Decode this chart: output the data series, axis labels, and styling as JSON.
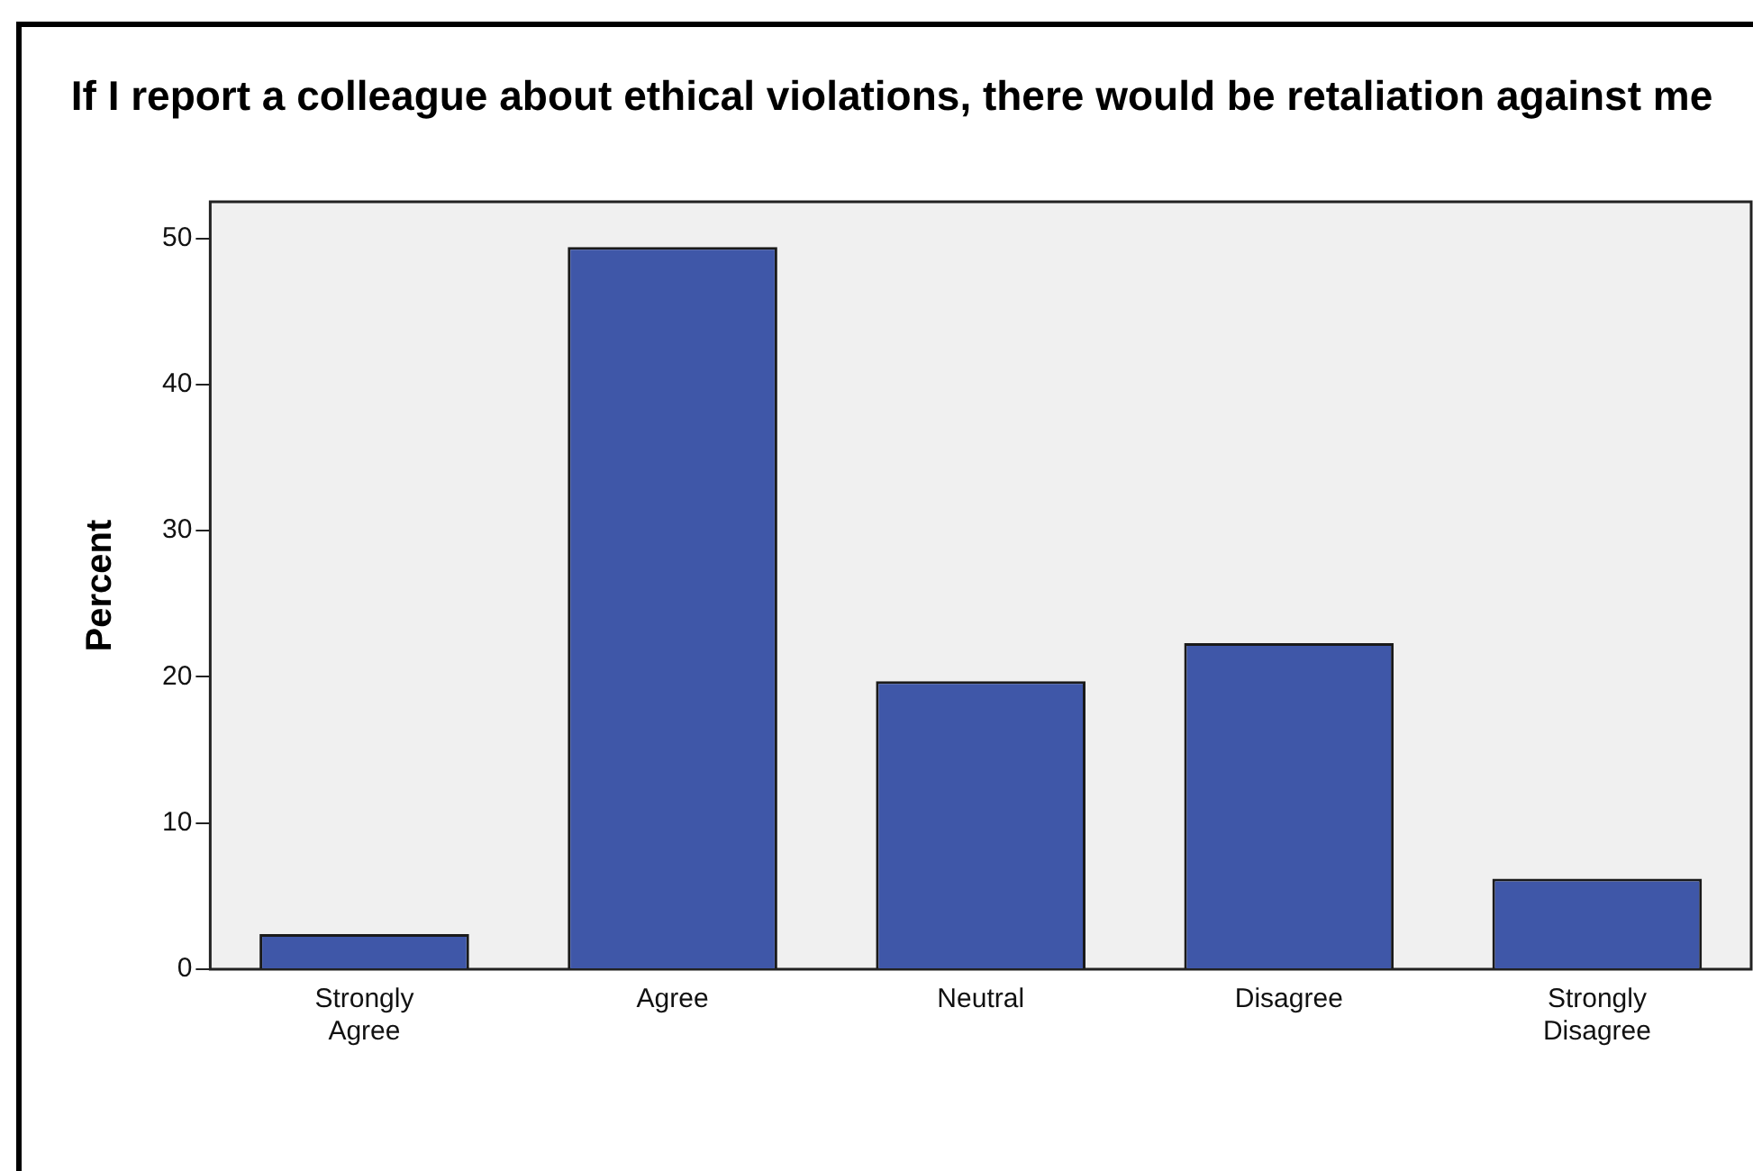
{
  "chart_data": {
    "type": "bar",
    "title": "If I report a colleague about ethical violations, there would be retaliation against me",
    "ylabel": "Percent",
    "categories": [
      "Strongly Agree",
      "Agree",
      "Neutral",
      "Disagree",
      "Strongly Disagree"
    ],
    "values": [
      2.4,
      49.4,
      19.7,
      22.3,
      6.2
    ],
    "color": "#3f57a8",
    "ylim": [
      0,
      52.5
    ],
    "yticks": [
      0,
      10,
      20,
      30,
      40,
      50
    ],
    "grid": false,
    "legend": false
  }
}
